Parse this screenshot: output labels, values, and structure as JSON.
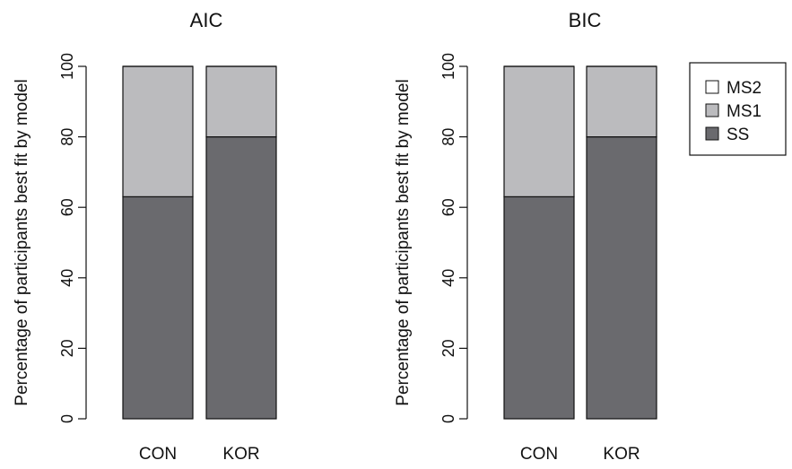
{
  "chart_data": [
    {
      "type": "bar",
      "stacked": true,
      "title": "AIC",
      "ylabel": "Percentage of participants best fit by model",
      "xlabel": "",
      "categories": [
        "CON",
        "KOR"
      ],
      "ylim": [
        0,
        100
      ],
      "yticks": [
        0,
        20,
        40,
        60,
        80,
        100
      ],
      "series": [
        {
          "name": "SS",
          "values": [
            63,
            80
          ],
          "color": "#6a6a6e"
        },
        {
          "name": "MS1",
          "values": [
            37,
            20
          ],
          "color": "#bbbbbe"
        },
        {
          "name": "MS2",
          "values": [
            0,
            0
          ],
          "color": "#ffffff"
        }
      ]
    },
    {
      "type": "bar",
      "stacked": true,
      "title": "BIC",
      "ylabel": "Percentage of participants best fit by model",
      "xlabel": "",
      "categories": [
        "CON",
        "KOR"
      ],
      "ylim": [
        0,
        100
      ],
      "yticks": [
        0,
        20,
        40,
        60,
        80,
        100
      ],
      "series": [
        {
          "name": "SS",
          "values": [
            63,
            80
          ],
          "color": "#6a6a6e"
        },
        {
          "name": "MS1",
          "values": [
            37,
            20
          ],
          "color": "#bbbbbe"
        },
        {
          "name": "MS2",
          "values": [
            0,
            0
          ],
          "color": "#ffffff"
        }
      ]
    }
  ],
  "legend": {
    "placement": "top-right",
    "entries": [
      {
        "label": "MS2",
        "color": "#ffffff"
      },
      {
        "label": "MS1",
        "color": "#bbbbbe"
      },
      {
        "label": "SS",
        "color": "#6a6a6e"
      }
    ]
  }
}
